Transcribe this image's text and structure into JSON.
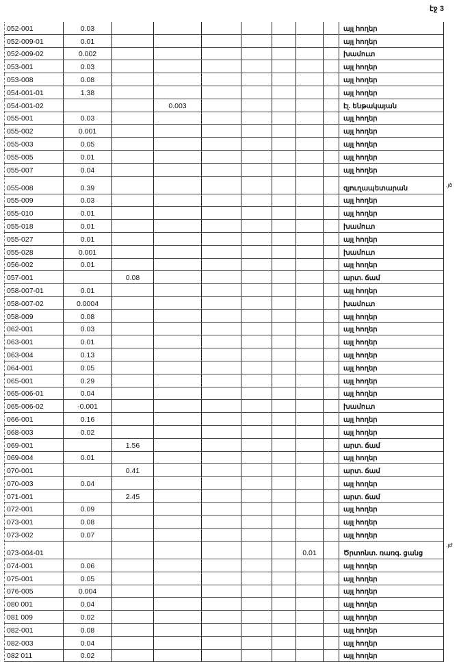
{
  "page_label": "էջ 3",
  "margin_notes": [
    ".յծ",
    ".յժ"
  ],
  "rows": [
    {
      "id": "052-001",
      "c1": "0.03",
      "c2": "",
      "c3": "",
      "c7": "",
      "desc": "այլ հողեր"
    },
    {
      "id": "052-009-01",
      "c1": "0.01",
      "c2": "",
      "c3": "",
      "c7": "",
      "desc": "այլ հողեր"
    },
    {
      "id": "052-009-02",
      "c1": "0.002",
      "c2": "",
      "c3": "",
      "c7": "",
      "desc": "խամուտ"
    },
    {
      "id": "053-001",
      "c1": "0.03",
      "c2": "",
      "c3": "",
      "c7": "",
      "desc": "այլ հողեր"
    },
    {
      "id": "053-008",
      "c1": "0.08",
      "c2": "",
      "c3": "",
      "c7": "",
      "desc": "այլ հողեր"
    },
    {
      "id": "054-001-01",
      "c1": "1.38",
      "c2": "",
      "c3": "",
      "c7": "",
      "desc": "այլ հողեր"
    },
    {
      "id": "054-001-02",
      "c1": "",
      "c2": "",
      "c3": "0.003",
      "c7": "",
      "desc": "էլ. ենթակայան"
    },
    {
      "id": "055-001",
      "c1": "0.03",
      "c2": "",
      "c3": "",
      "c7": "",
      "desc": "այլ հողեր"
    },
    {
      "id": "055-002",
      "c1": "0.001",
      "c2": "",
      "c3": "",
      "c7": "",
      "desc": "այլ հողեր"
    },
    {
      "id": "055-003",
      "c1": "0.05",
      "c2": "",
      "c3": "",
      "c7": "",
      "desc": "այլ հողեր"
    },
    {
      "id": "055-005",
      "c1": "0.01",
      "c2": "",
      "c3": "",
      "c7": "",
      "desc": "այլ հողեր"
    },
    {
      "id": "055-007",
      "c1": "0.04",
      "c2": "",
      "c3": "",
      "c7": "",
      "desc": "այլ հողեր"
    },
    {
      "id": "055-008",
      "c1": "0.39",
      "c2": "",
      "c3": "",
      "c7": "",
      "desc": "գյուղապետարան"
    },
    {
      "id": "055-009",
      "c1": "0.03",
      "c2": "",
      "c3": "",
      "c7": "",
      "desc": "այլ հողեր"
    },
    {
      "id": "055-010",
      "c1": "0.01",
      "c2": "",
      "c3": "",
      "c7": "",
      "desc": "այլ հողեր"
    },
    {
      "id": "055-018",
      "c1": "0.01",
      "c2": "",
      "c3": "",
      "c7": "",
      "desc": "խամուտ"
    },
    {
      "id": "055-027",
      "c1": "0.01",
      "c2": "",
      "c3": "",
      "c7": "",
      "desc": "այլ հողեր"
    },
    {
      "id": "055-028",
      "c1": "0.001",
      "c2": "",
      "c3": "",
      "c7": "",
      "desc": "խամուտ"
    },
    {
      "id": "056-002",
      "c1": "0.01",
      "c2": "",
      "c3": "",
      "c7": "",
      "desc": "այլ հողեր"
    },
    {
      "id": "057-001",
      "c1": "",
      "c2": "0.08",
      "c3": "",
      "c7": "",
      "desc": "արտ. ճամ"
    },
    {
      "id": "058-007-01",
      "c1": "0.01",
      "c2": "",
      "c3": "",
      "c7": "",
      "desc": "այլ հողեր"
    },
    {
      "id": "058-007-02",
      "c1": "0.0004",
      "c2": "",
      "c3": "",
      "c7": "",
      "desc": "խամուտ"
    },
    {
      "id": "058-009",
      "c1": "0.08",
      "c2": "",
      "c3": "",
      "c7": "",
      "desc": "այլ հողեր"
    },
    {
      "id": "062-001",
      "c1": "0.03",
      "c2": "",
      "c3": "",
      "c7": "",
      "desc": "այլ հողեր"
    },
    {
      "id": "063-001",
      "c1": "0.01",
      "c2": "",
      "c3": "",
      "c7": "",
      "desc": "այլ հողեր"
    },
    {
      "id": "063-004",
      "c1": "0.13",
      "c2": "",
      "c3": "",
      "c7": "",
      "desc": "այլ հողեր"
    },
    {
      "id": "064-001",
      "c1": "0.05",
      "c2": "",
      "c3": "",
      "c7": "",
      "desc": "այլ հողեր"
    },
    {
      "id": "065-001",
      "c1": "0.29",
      "c2": "",
      "c3": "",
      "c7": "",
      "desc": "այլ հողեր"
    },
    {
      "id": "065-006-01",
      "c1": "0.04",
      "c2": "",
      "c3": "",
      "c7": "",
      "desc": "այլ հողեր"
    },
    {
      "id": "065-006-02",
      "c1": "-0.001",
      "c2": "",
      "c3": "",
      "c7": "",
      "desc": "խամուտ"
    },
    {
      "id": "066-001",
      "c1": "0.16",
      "c2": "",
      "c3": "",
      "c7": "",
      "desc": "այլ հողեր"
    },
    {
      "id": "068-003",
      "c1": "0.02",
      "c2": "",
      "c3": "",
      "c7": "",
      "desc": "այլ հողեր"
    },
    {
      "id": "069-001",
      "c1": "",
      "c2": "1.56",
      "c3": "",
      "c7": "",
      "desc": "արտ. ճամ"
    },
    {
      "id": "069-004",
      "c1": "0.01",
      "c2": "",
      "c3": "",
      "c7": "",
      "desc": "այլ հողեր"
    },
    {
      "id": "070-001",
      "c1": "",
      "c2": "0.41",
      "c3": "",
      "c7": "",
      "desc": "արտ. ճամ"
    },
    {
      "id": "070-003",
      "c1": "0.04",
      "c2": "",
      "c3": "",
      "c7": "",
      "desc": "այլ հողեր"
    },
    {
      "id": "071-001",
      "c1": "",
      "c2": "2.45",
      "c3": "",
      "c7": "",
      "desc": "արտ. ճամ"
    },
    {
      "id": "072-001",
      "c1": "0.09",
      "c2": "",
      "c3": "",
      "c7": "",
      "desc": "այլ հողեր"
    },
    {
      "id": "073-001",
      "c1": "0.08",
      "c2": "",
      "c3": "",
      "c7": "",
      "desc": "այլ հողեր"
    },
    {
      "id": "073-002",
      "c1": "0.07",
      "c2": "",
      "c3": "",
      "c7": "",
      "desc": "այլ հողեր"
    },
    {
      "id": "073-004-01",
      "c1": "",
      "c2": "",
      "c3": "",
      "c7": "0.01",
      "desc": "Ծրտոնտ. ռառգ. ցանց"
    },
    {
      "id": "074-001",
      "c1": "0.06",
      "c2": "",
      "c3": "",
      "c7": "",
      "desc": "այլ հողեր"
    },
    {
      "id": "075-001",
      "c1": "0.05",
      "c2": "",
      "c3": "",
      "c7": "",
      "desc": "այլ հողեր"
    },
    {
      "id": "076-005",
      "c1": "0.004",
      "c2": "",
      "c3": "",
      "c7": "",
      "desc": "այլ հողեր"
    },
    {
      "id": "080 001",
      "c1": "0.04",
      "c2": "",
      "c3": "",
      "c7": "",
      "desc": "այլ հողեր"
    },
    {
      "id": "081 009",
      "c1": "0.02",
      "c2": "",
      "c3": "",
      "c7": "",
      "desc": "այլ հողեր"
    },
    {
      "id": "082-001",
      "c1": "0.08",
      "c2": "",
      "c3": "",
      "c7": "",
      "desc": "այլ հողեր"
    },
    {
      "id": "082-003",
      "c1": "0.04",
      "c2": "",
      "c3": "",
      "c7": "",
      "desc": "այլ հողեր"
    },
    {
      "id": "082 011",
      "c1": "0.02",
      "c2": "",
      "c3": "",
      "c7": "",
      "desc": "այլ հողեր"
    }
  ]
}
